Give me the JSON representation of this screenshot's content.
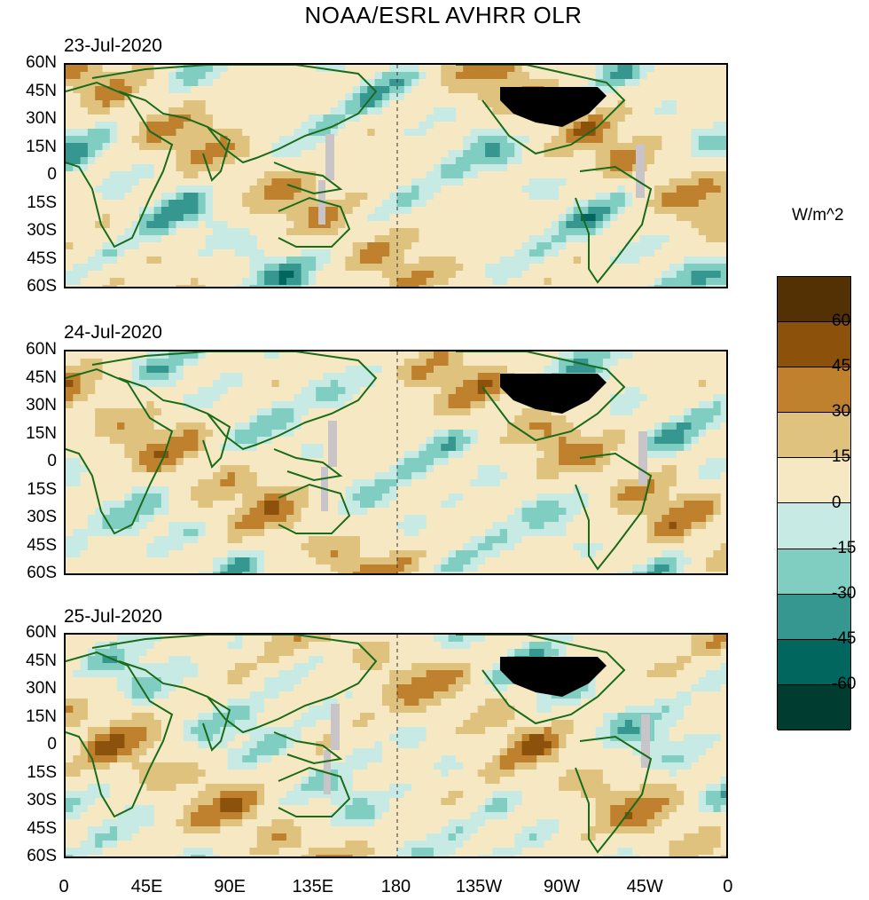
{
  "title": "NOAA/ESRL AVHRR OLR",
  "unit_label": "W/m^2",
  "panels": [
    {
      "date": "23-Jul-2020"
    },
    {
      "date": "24-Jul-2020"
    },
    {
      "date": "25-Jul-2020"
    }
  ],
  "lat_labels": [
    "60N",
    "45N",
    "30N",
    "15N",
    "0",
    "15S",
    "30S",
    "45S",
    "60S"
  ],
  "lon_labels": [
    "0",
    "45E",
    "90E",
    "135E",
    "180",
    "135W",
    "90W",
    "45W",
    "0"
  ],
  "colorbar": {
    "labels": [
      "60",
      "45",
      "30",
      "15",
      "0",
      "-15",
      "-30",
      "-45",
      "-60"
    ],
    "colors": [
      "#543005",
      "#8c510a",
      "#bf812d",
      "#dfc27d",
      "#f6e8c3",
      "#c7eae5",
      "#80cdc1",
      "#35978f",
      "#01665e",
      "#003c30"
    ]
  },
  "map_colors": {
    "coast": "#1a6b1a",
    "missing": "#c8c4c8",
    "usa": "#000000"
  }
}
